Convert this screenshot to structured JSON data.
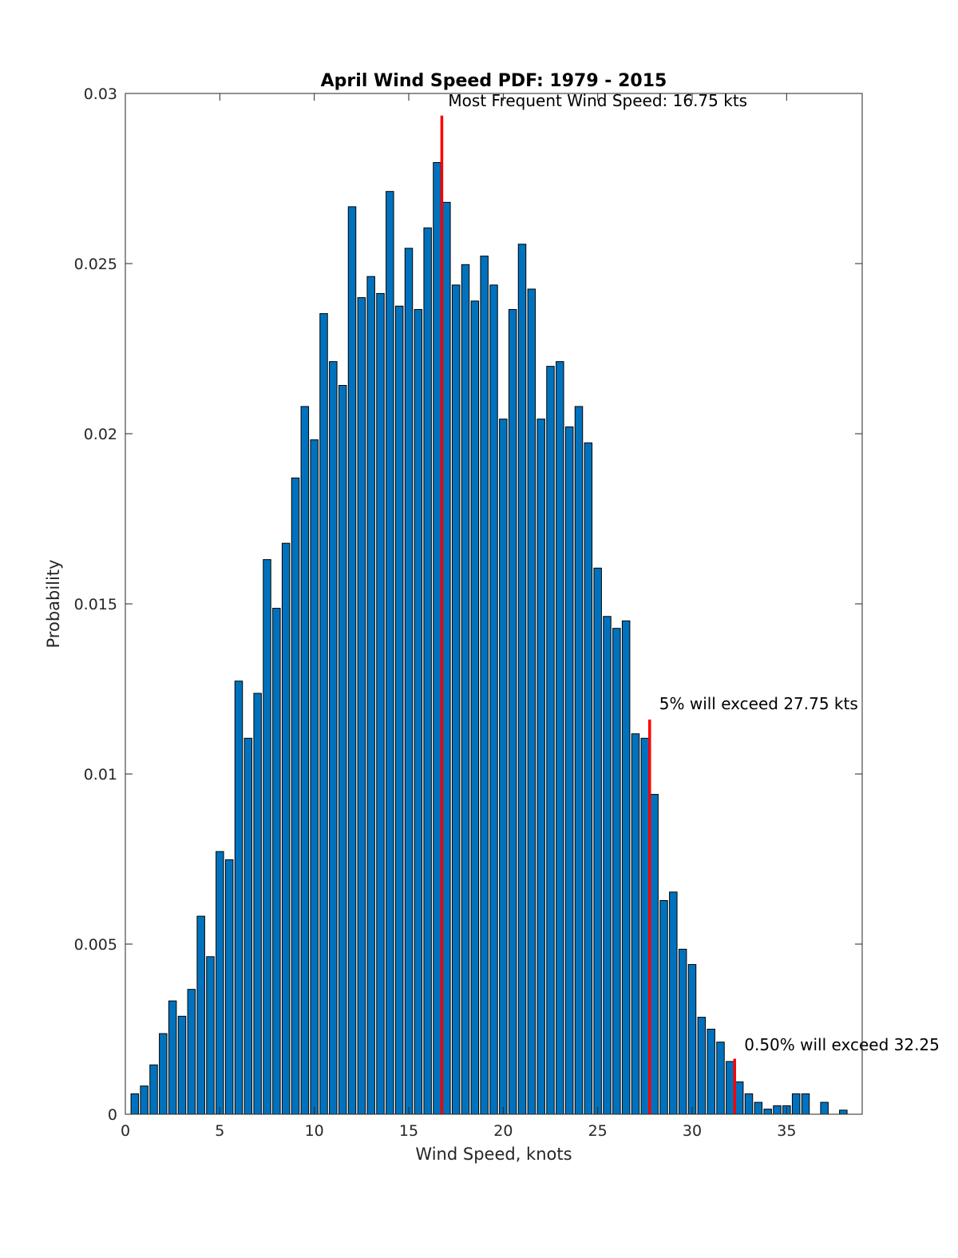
{
  "chart_data": {
    "type": "bar",
    "title": "April Wind Speed PDF: 1979 - 2015",
    "xlabel": "Wind Speed, knots",
    "ylabel": "Probability",
    "xlim": [
      0,
      39
    ],
    "ylim": [
      0,
      0.03
    ],
    "xticks": [
      0,
      5,
      10,
      15,
      20,
      25,
      30,
      35
    ],
    "xtick_labels": [
      "0",
      "5",
      "10",
      "15",
      "20",
      "25",
      "30",
      "35"
    ],
    "yticks": [
      0,
      0.005,
      0.01,
      0.015,
      0.02,
      0.025,
      0.03
    ],
    "ytick_labels": [
      "0",
      "0.005",
      "0.01",
      "0.015",
      "0.02",
      "0.025",
      "0.03"
    ],
    "grid": false,
    "bar_width": 0.4,
    "bar_color": "#0072BD",
    "x": [
      0.5,
      1,
      1.5,
      2,
      2.5,
      3,
      3.5,
      4,
      4.5,
      5,
      5.5,
      6,
      6.5,
      7,
      7.5,
      8,
      8.5,
      9,
      9.5,
      10,
      10.5,
      11,
      11.5,
      12,
      12.5,
      13,
      13.5,
      14,
      14.5,
      15,
      15.5,
      16,
      16.5,
      17,
      17.5,
      18,
      18.5,
      19,
      19.5,
      20,
      20.5,
      21,
      21.5,
      22,
      22.5,
      23,
      23.5,
      24,
      24.5,
      25,
      25.5,
      26,
      26.5,
      27,
      27.5,
      28,
      28.5,
      29,
      29.5,
      30,
      30.5,
      31,
      31.5,
      32,
      32.5,
      33,
      33.5,
      34,
      34.5,
      35,
      35.5,
      36,
      36.5,
      37,
      37.5,
      38,
      38.5
    ],
    "values": [
      0.0006,
      0.00083,
      0.00145,
      0.00237,
      0.00333,
      0.00288,
      0.00367,
      0.00582,
      0.00463,
      0.00772,
      0.00748,
      0.01273,
      0.01105,
      0.01237,
      0.0163,
      0.01487,
      0.01678,
      0.0187,
      0.0208,
      0.01982,
      0.02353,
      0.02212,
      0.02142,
      0.02667,
      0.024,
      0.02462,
      0.02412,
      0.02712,
      0.02375,
      0.02545,
      0.02365,
      0.02605,
      0.02797,
      0.0268,
      0.02437,
      0.02497,
      0.0239,
      0.02522,
      0.02437,
      0.02043,
      0.02365,
      0.02557,
      0.02425,
      0.02043,
      0.02198,
      0.02212,
      0.0202,
      0.0208,
      0.01973,
      0.01605,
      0.01463,
      0.01428,
      0.0145,
      0.01118,
      0.01105,
      0.0094,
      0.00628,
      0.00653,
      0.00485,
      0.0044,
      0.00285,
      0.0025,
      0.00212,
      0.00155,
      0.00095,
      0.0006,
      0.00035,
      0.00015,
      0.00025,
      0.00025,
      0.0006,
      0.0006,
      0.0,
      0.00035,
      0.0,
      0.00012,
      0.0
    ],
    "reference_lines": [
      {
        "x": 16.75,
        "y_top": 0.02935,
        "color": "#ff0000",
        "label": "Most Frequent Wind Speed: 16.75 kts"
      },
      {
        "x": 27.75,
        "y_top": 0.0116,
        "color": "#ff0000",
        "label": "5% will exceed 27.75 kts"
      },
      {
        "x": 32.25,
        "y_top": 0.00163,
        "color": "#ff0000",
        "label": "0.50% will exceed 32.25"
      }
    ]
  }
}
